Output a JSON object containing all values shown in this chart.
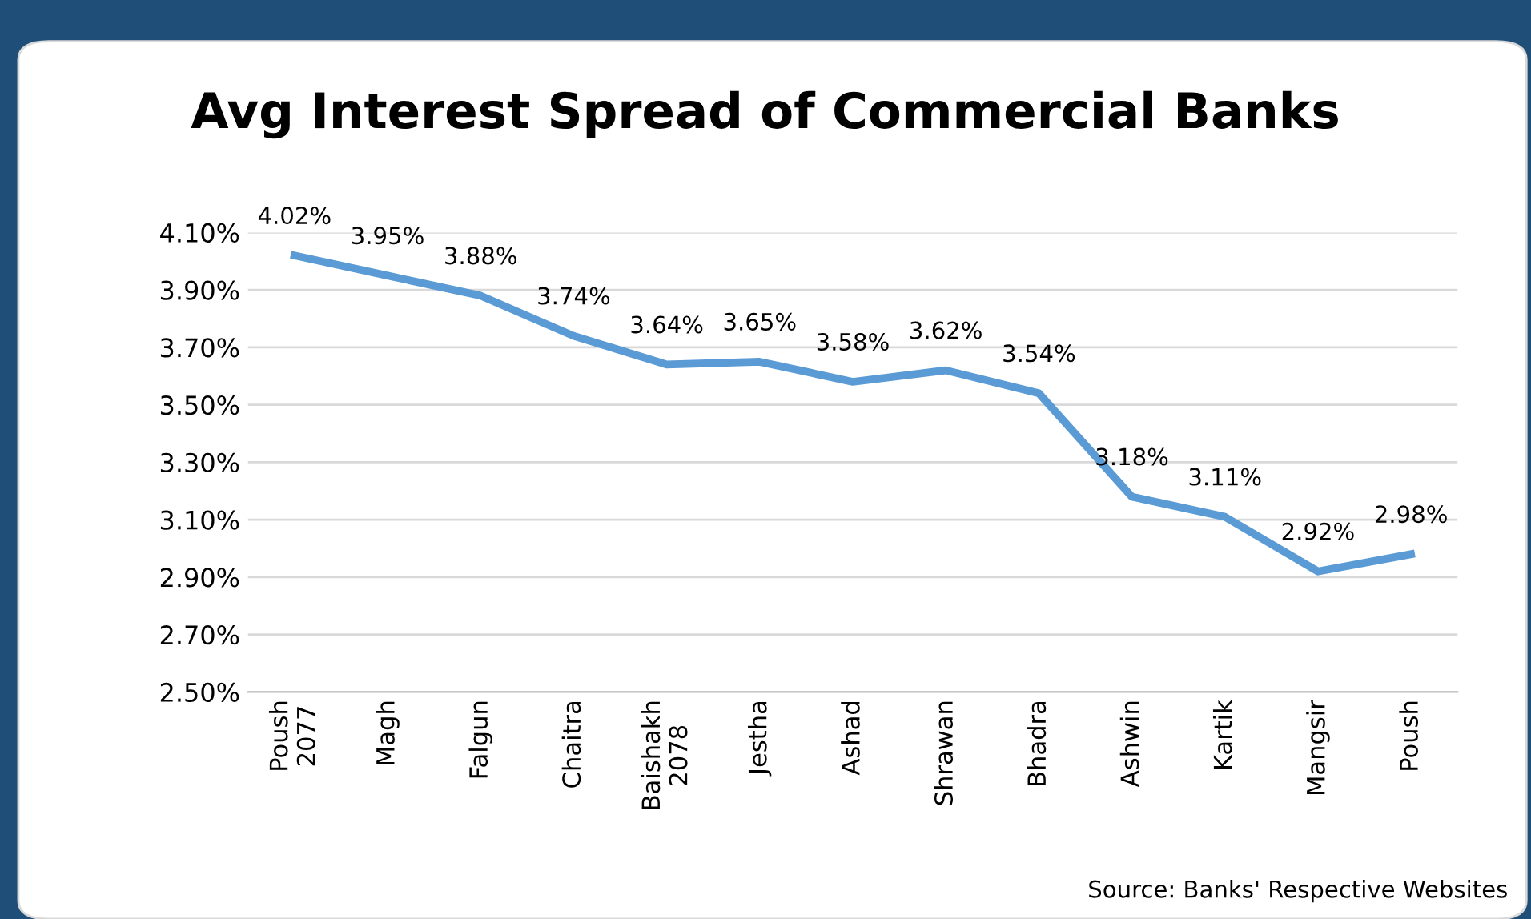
{
  "chart_data": {
    "type": "line",
    "title": "Avg Interest Spread of Commercial Banks",
    "categories": [
      "Poush\n2077",
      "Magh",
      "Falgun",
      "Chaitra",
      "Baishakh\n2078",
      "Jestha",
      "Ashad",
      "Shrawan",
      "Bhadra",
      "Ashwin",
      "Kartik",
      "Mangsir",
      "Poush"
    ],
    "series": [
      {
        "color": "#5b9bd5",
        "values": [
          4.02,
          3.95,
          3.88,
          3.74,
          3.64,
          3.65,
          3.58,
          3.62,
          3.54,
          3.18,
          3.11,
          2.92,
          2.98
        ],
        "value_labels": [
          "4.02%",
          "3.95%",
          "3.88%",
          "3.74%",
          "3.64%",
          "3.65%",
          "3.58%",
          "3.62%",
          "3.54%",
          "3.18%",
          "3.11%",
          "2.92%",
          "2.98%"
        ]
      }
    ],
    "ylim": [
      2.5,
      4.1
    ],
    "yticks": [
      {
        "value": 2.5,
        "label": "2.50%"
      },
      {
        "value": 2.7,
        "label": "2.70%"
      },
      {
        "value": 2.9,
        "label": "2.90%"
      },
      {
        "value": 3.1,
        "label": "3.10%"
      },
      {
        "value": 3.3,
        "label": "3.30%"
      },
      {
        "value": 3.5,
        "label": "3.50%"
      },
      {
        "value": 3.7,
        "label": "3.70%"
      },
      {
        "value": 3.9,
        "label": "3.90%"
      },
      {
        "value": 4.1,
        "label": "4.10%"
      }
    ],
    "grid": "y",
    "legend": false,
    "marker": "none",
    "line_style": "solid",
    "annotations": [
      "Source: Banks' Respective Websites"
    ]
  }
}
